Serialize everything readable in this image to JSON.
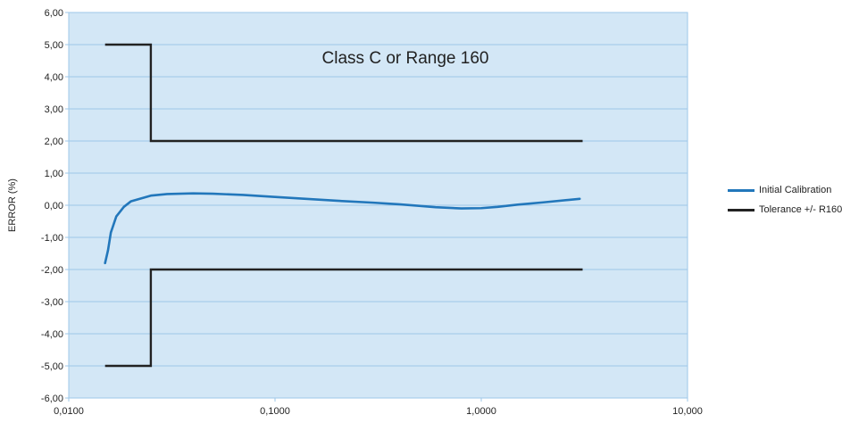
{
  "chart_data": {
    "type": "line",
    "title": "",
    "annotation": "Class C or Range 160",
    "xlabel": "",
    "ylabel": "ERROR (%)",
    "xscale": "log",
    "xlim": [
      0.01,
      10
    ],
    "ylim": [
      -6,
      6
    ],
    "x_tick_labels": [
      "0,0100",
      "0,1000",
      "1,0000",
      "10,000"
    ],
    "x_tick_values": [
      0.01,
      0.1,
      1,
      10
    ],
    "y_tick_labels": [
      "6,00",
      "5,00",
      "4,00",
      "3,00",
      "2,00",
      "1,00",
      "0,00",
      "-1,00",
      "-2,00",
      "-3,00",
      "-4,00",
      "-5,00",
      "-6,00"
    ],
    "y_tick_values": [
      6,
      5,
      4,
      3,
      2,
      1,
      0,
      -1,
      -2,
      -3,
      -4,
      -5,
      -6
    ],
    "grid": "horizontal",
    "legend_position": "right",
    "series": [
      {
        "name": "Initial Calibration",
        "color": "#2277bb",
        "points": [
          [
            0.015,
            -1.8
          ],
          [
            0.0155,
            -1.4
          ],
          [
            0.016,
            -0.85
          ],
          [
            0.017,
            -0.35
          ],
          [
            0.0185,
            -0.05
          ],
          [
            0.02,
            0.12
          ],
          [
            0.025,
            0.3
          ],
          [
            0.03,
            0.35
          ],
          [
            0.04,
            0.37
          ],
          [
            0.05,
            0.36
          ],
          [
            0.07,
            0.32
          ],
          [
            0.1,
            0.26
          ],
          [
            0.15,
            0.19
          ],
          [
            0.2,
            0.14
          ],
          [
            0.3,
            0.08
          ],
          [
            0.4,
            0.03
          ],
          [
            0.5,
            -0.02
          ],
          [
            0.6,
            -0.06
          ],
          [
            0.8,
            -0.1
          ],
          [
            1.0,
            -0.09
          ],
          [
            1.2,
            -0.05
          ],
          [
            1.5,
            0.02
          ],
          [
            2.0,
            0.09
          ],
          [
            3.0,
            0.2
          ]
        ]
      },
      {
        "name": "Tolerance +/- R160",
        "color": "#222222",
        "segments": [
          [
            [
              0.015,
              5
            ],
            [
              0.025,
              5
            ],
            [
              0.025,
              2
            ],
            [
              3.1,
              2
            ]
          ],
          [
            [
              0.015,
              -5
            ],
            [
              0.025,
              -5
            ],
            [
              0.025,
              -2
            ],
            [
              3.1,
              -2
            ]
          ]
        ]
      }
    ],
    "colors": {
      "plot_background": "#d3e7f6",
      "gridline": "#9ec7e8",
      "axis": "#9ec7e8"
    }
  },
  "legend": [
    {
      "label": "Initial Calibration",
      "color": "#2277bb"
    },
    {
      "label": "Tolerance +/- R160",
      "color": "#222222"
    }
  ]
}
